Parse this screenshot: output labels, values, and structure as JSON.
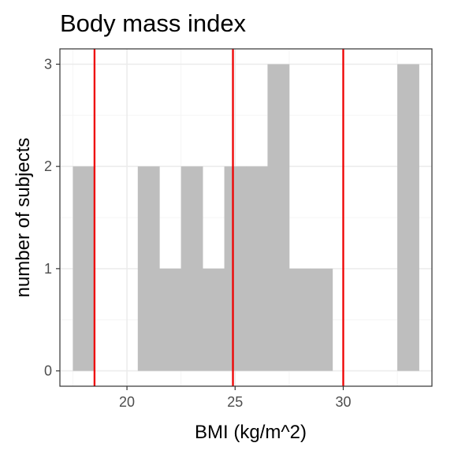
{
  "chart_data": {
    "type": "bar",
    "title": "Body mass index",
    "xlabel": "BMI (kg/m^2)",
    "ylabel": "number of subjects",
    "xlim": [
      16.9,
      34.1
    ],
    "ylim": [
      -0.15,
      3.15
    ],
    "x_ticks": [
      20,
      25,
      30
    ],
    "y_ticks": [
      0,
      1,
      2,
      3
    ],
    "grid": true,
    "bin_width": 1,
    "bins": [
      {
        "start": 17.5,
        "end": 18.5,
        "count": 2
      },
      {
        "start": 18.5,
        "end": 19.5,
        "count": 0
      },
      {
        "start": 19.5,
        "end": 20.5,
        "count": 0
      },
      {
        "start": 20.5,
        "end": 21.5,
        "count": 2
      },
      {
        "start": 21.5,
        "end": 22.5,
        "count": 1
      },
      {
        "start": 22.5,
        "end": 23.5,
        "count": 2
      },
      {
        "start": 23.5,
        "end": 24.5,
        "count": 1
      },
      {
        "start": 24.5,
        "end": 25.5,
        "count": 2
      },
      {
        "start": 25.5,
        "end": 26.5,
        "count": 2
      },
      {
        "start": 26.5,
        "end": 27.5,
        "count": 3
      },
      {
        "start": 27.5,
        "end": 28.5,
        "count": 1
      },
      {
        "start": 28.5,
        "end": 29.5,
        "count": 1
      },
      {
        "start": 29.5,
        "end": 30.5,
        "count": 0
      },
      {
        "start": 30.5,
        "end": 31.5,
        "count": 0
      },
      {
        "start": 31.5,
        "end": 32.5,
        "count": 0
      },
      {
        "start": 32.5,
        "end": 33.5,
        "count": 3
      }
    ],
    "reference_lines": [
      18.5,
      24.9,
      30
    ],
    "colors": {
      "bar": "#bebebe",
      "reference_line": "#ee0000",
      "grid_major": "#ebebeb",
      "grid_minor": "#f5f5f5",
      "panel_border": "#333333",
      "tick": "#333333"
    }
  }
}
